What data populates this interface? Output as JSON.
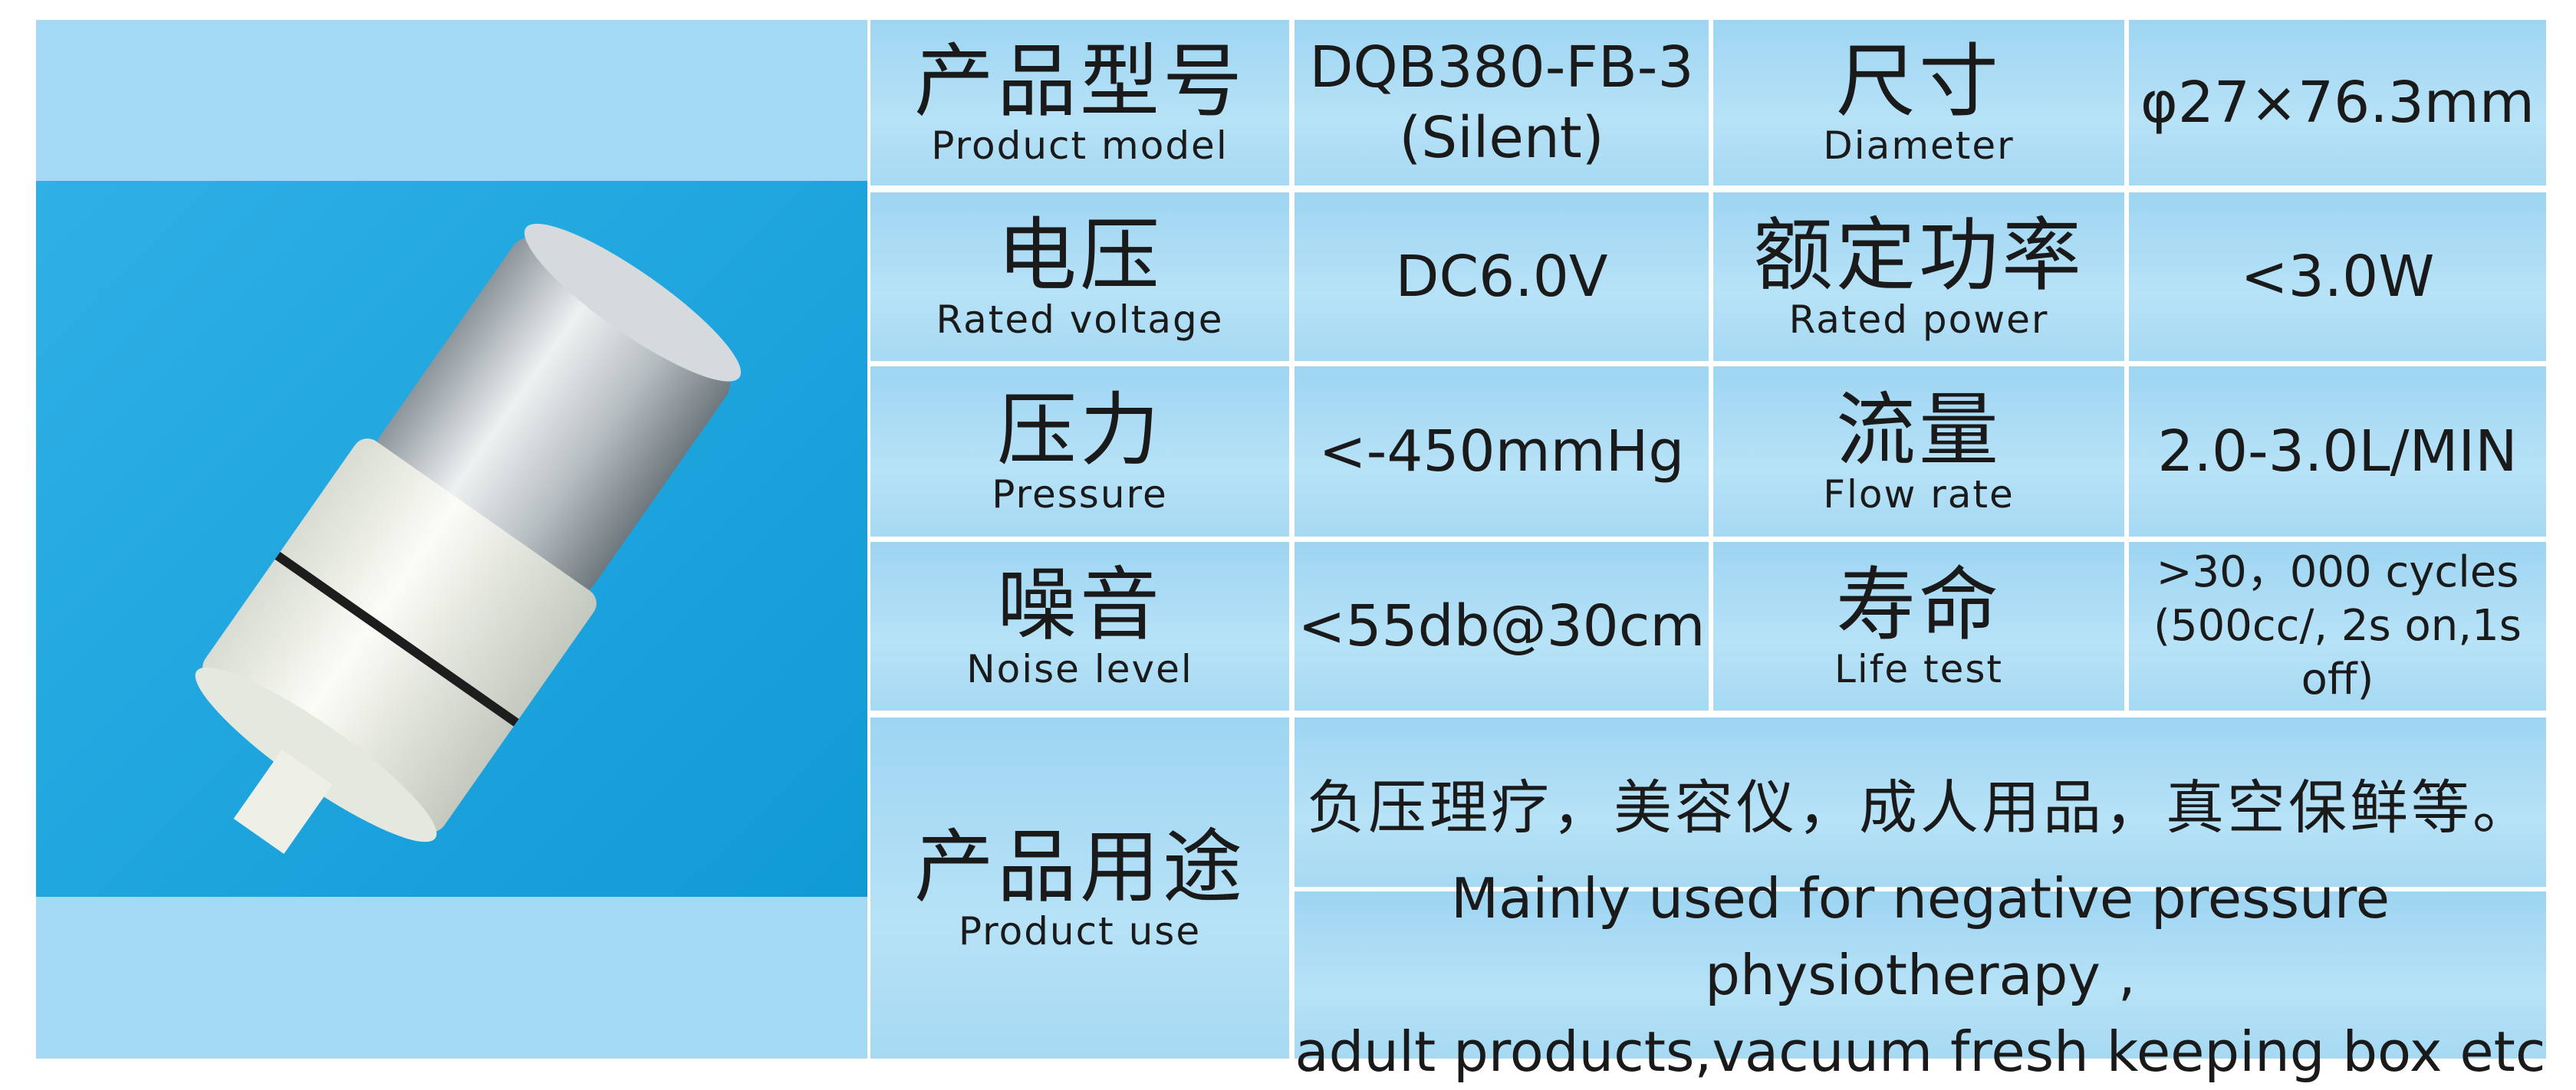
{
  "specs": [
    {
      "label_cn": "产品型号",
      "label_en": "Product model",
      "value": [
        "DQB380-FB-3",
        "(Silent)"
      ],
      "label2_cn": "尺寸",
      "label2_en": "Diameter",
      "value2": [
        "φ27×76.3mm"
      ]
    },
    {
      "label_cn": "电压",
      "label_en": "Rated voltage",
      "value": [
        "DC6.0V"
      ],
      "label2_cn": "额定功率",
      "label2_en": "Rated power",
      "value2": [
        "<3.0W"
      ]
    },
    {
      "label_cn": "压力",
      "label_en": "Pressure",
      "value": [
        "<-450mmHg"
      ],
      "label2_cn": "流量",
      "label2_en": "Flow rate",
      "value2": [
        "2.0-3.0L/MIN"
      ]
    },
    {
      "label_cn": "噪音",
      "label_en": "Noise level",
      "value": [
        "<55db@30cm"
      ],
      "label2_cn": "寿命",
      "label2_en": "Life test",
      "value2": [
        ">30，000 cycles",
        "(500cc/, 2s on,1s off)"
      ]
    }
  ],
  "usage": {
    "label_cn": "产品用途",
    "label_en": "Product use",
    "text_cn": "负压理疗，美容仪，成人用品，真空保鲜等。",
    "text_en": [
      "Mainly used for negative pressure physiotherapy ,",
      "adult products,vacuum fresh keeping box etc"
    ]
  }
}
